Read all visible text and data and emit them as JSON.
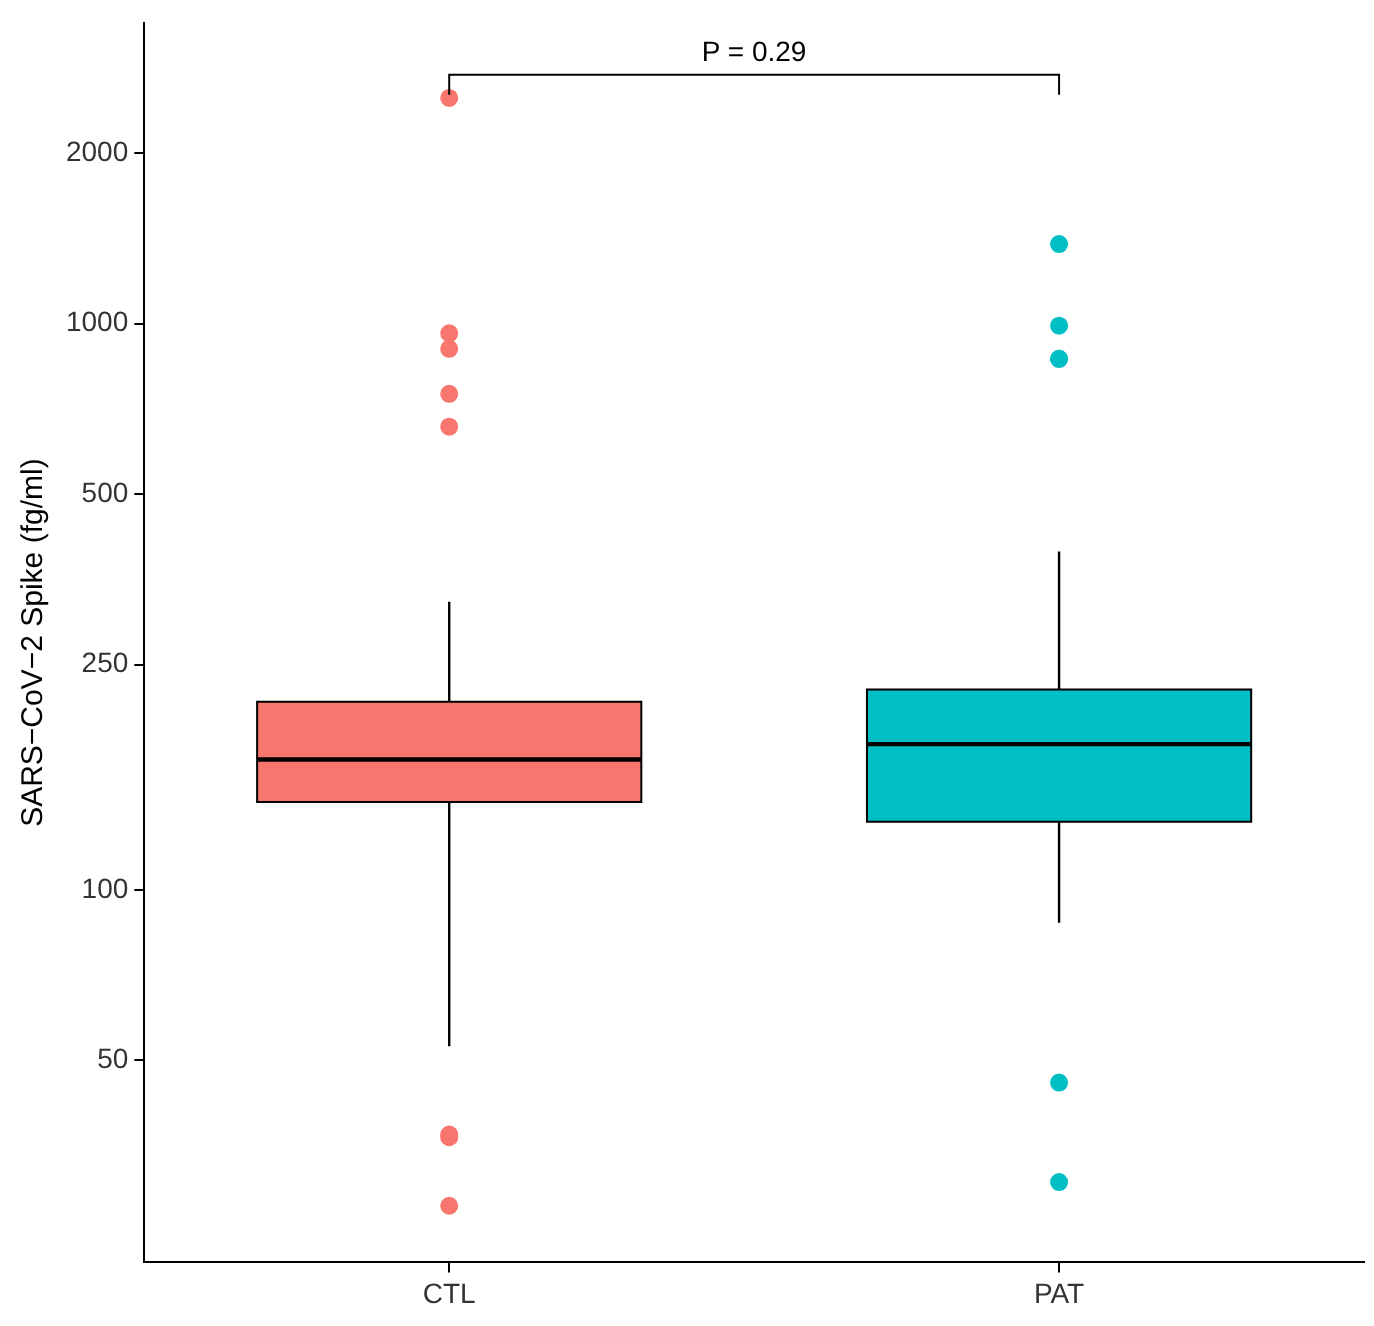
{
  "chart_data": {
    "type": "box",
    "categories": [
      "CTL",
      "PAT"
    ],
    "colors": [
      "#f8766d",
      "#00bfc4"
    ],
    "boxes": [
      {
        "low": 53,
        "q1": 143,
        "median": 170,
        "q3": 215,
        "high": 323,
        "outliers": [
          2505,
          903,
          962,
          658,
          752,
          37,
          36.6,
          27.7
        ]
      },
      {
        "low": 87.5,
        "q1": 132,
        "median": 181,
        "q3": 226,
        "high": 396,
        "outliers": [
          1383,
          992,
          867,
          867,
          45.7,
          30.5
        ]
      }
    ],
    "ylabel": "SARS−CoV−2 Spike (fg/ml)",
    "log": true,
    "ylim": [
      22,
      3400
    ],
    "yticks": [
      50,
      100,
      250,
      500,
      1000,
      2000
    ],
    "grid": false,
    "legend": false,
    "annotations": [
      "P = 0.29"
    ]
  }
}
